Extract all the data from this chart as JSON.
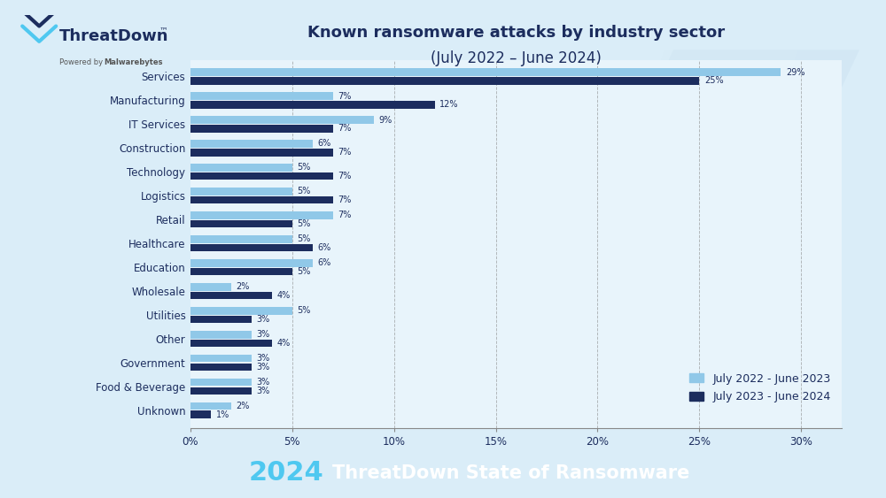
{
  "title_line1": "Known ransomware attacks by industry sector",
  "title_line2": "(July 2022 – June 2024)",
  "categories": [
    "Services",
    "Manufacturing",
    "IT Services",
    "Construction",
    "Technology",
    "Logistics",
    "Retail",
    "Healthcare",
    "Education",
    "Wholesale",
    "Utilities",
    "Other",
    "Government",
    "Food & Beverage",
    "Unknown"
  ],
  "values_2022_2023": [
    29,
    7,
    9,
    6,
    5,
    5,
    7,
    5,
    6,
    2,
    5,
    3,
    3,
    3,
    2
  ],
  "values_2023_2024": [
    25,
    12,
    7,
    7,
    7,
    7,
    5,
    6,
    5,
    4,
    3,
    4,
    3,
    3,
    1
  ],
  "color_2022_2023": "#90c8e8",
  "color_2023_2024": "#1c2d5e",
  "legend_label_1": "July 2022 - June 2023",
  "legend_label_2": "July 2023 - June 2024",
  "xlim_max": 32,
  "xticks": [
    0,
    5,
    10,
    15,
    20,
    25,
    30
  ],
  "xticklabels": [
    "0%",
    "5%",
    "10%",
    "15%",
    "20%",
    "25%",
    "30%"
  ],
  "bg_color": "#daedf8",
  "chart_bg": "#e8f4fb",
  "footer_bg": "#162040",
  "footer_year": "2024",
  "footer_text": "ThreatDown State of Ransomware",
  "footer_year_color": "#4fc8f0",
  "footer_text_color": "#ffffff",
  "title_color": "#1c2d5e",
  "label_color": "#1c2d5e",
  "tick_label_color": "#1c2d5e",
  "grid_color": "#888888",
  "bar_label_fontsize": 7,
  "ytick_fontsize": 8.5,
  "xtick_fontsize": 8.5,
  "title1_fontsize": 13,
  "title2_fontsize": 12,
  "legend_fontsize": 9,
  "footer_year_fontsize": 22,
  "footer_text_fontsize": 15
}
